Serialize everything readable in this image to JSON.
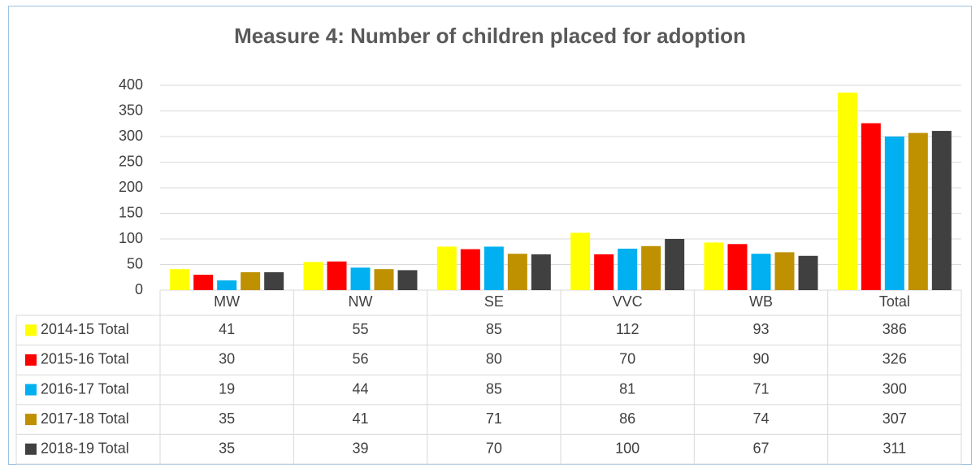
{
  "chart_data": {
    "type": "bar",
    "title": "Measure 4: Number of children placed for adoption",
    "categories": [
      "MW",
      "NW",
      "SE",
      "VVC",
      "WB",
      "Total"
    ],
    "series": [
      {
        "name": "2014-15 Total",
        "color": "#ffff00",
        "values": [
          41,
          55,
          85,
          112,
          93,
          386
        ]
      },
      {
        "name": "2015-16 Total",
        "color": "#ff0000",
        "values": [
          30,
          56,
          80,
          70,
          90,
          326
        ]
      },
      {
        "name": "2016-17 Total",
        "color": "#00b0f0",
        "values": [
          19,
          44,
          85,
          81,
          71,
          300
        ]
      },
      {
        "name": "2017-18 Total",
        "color": "#bf9000",
        "values": [
          35,
          41,
          71,
          86,
          74,
          307
        ]
      },
      {
        "name": "2018-19 Total",
        "color": "#404040",
        "values": [
          35,
          39,
          70,
          100,
          67,
          311
        ]
      }
    ],
    "ylim": [
      0,
      400
    ],
    "yticks": [
      0,
      50,
      100,
      150,
      200,
      250,
      300,
      350,
      400
    ],
    "grid": true
  }
}
